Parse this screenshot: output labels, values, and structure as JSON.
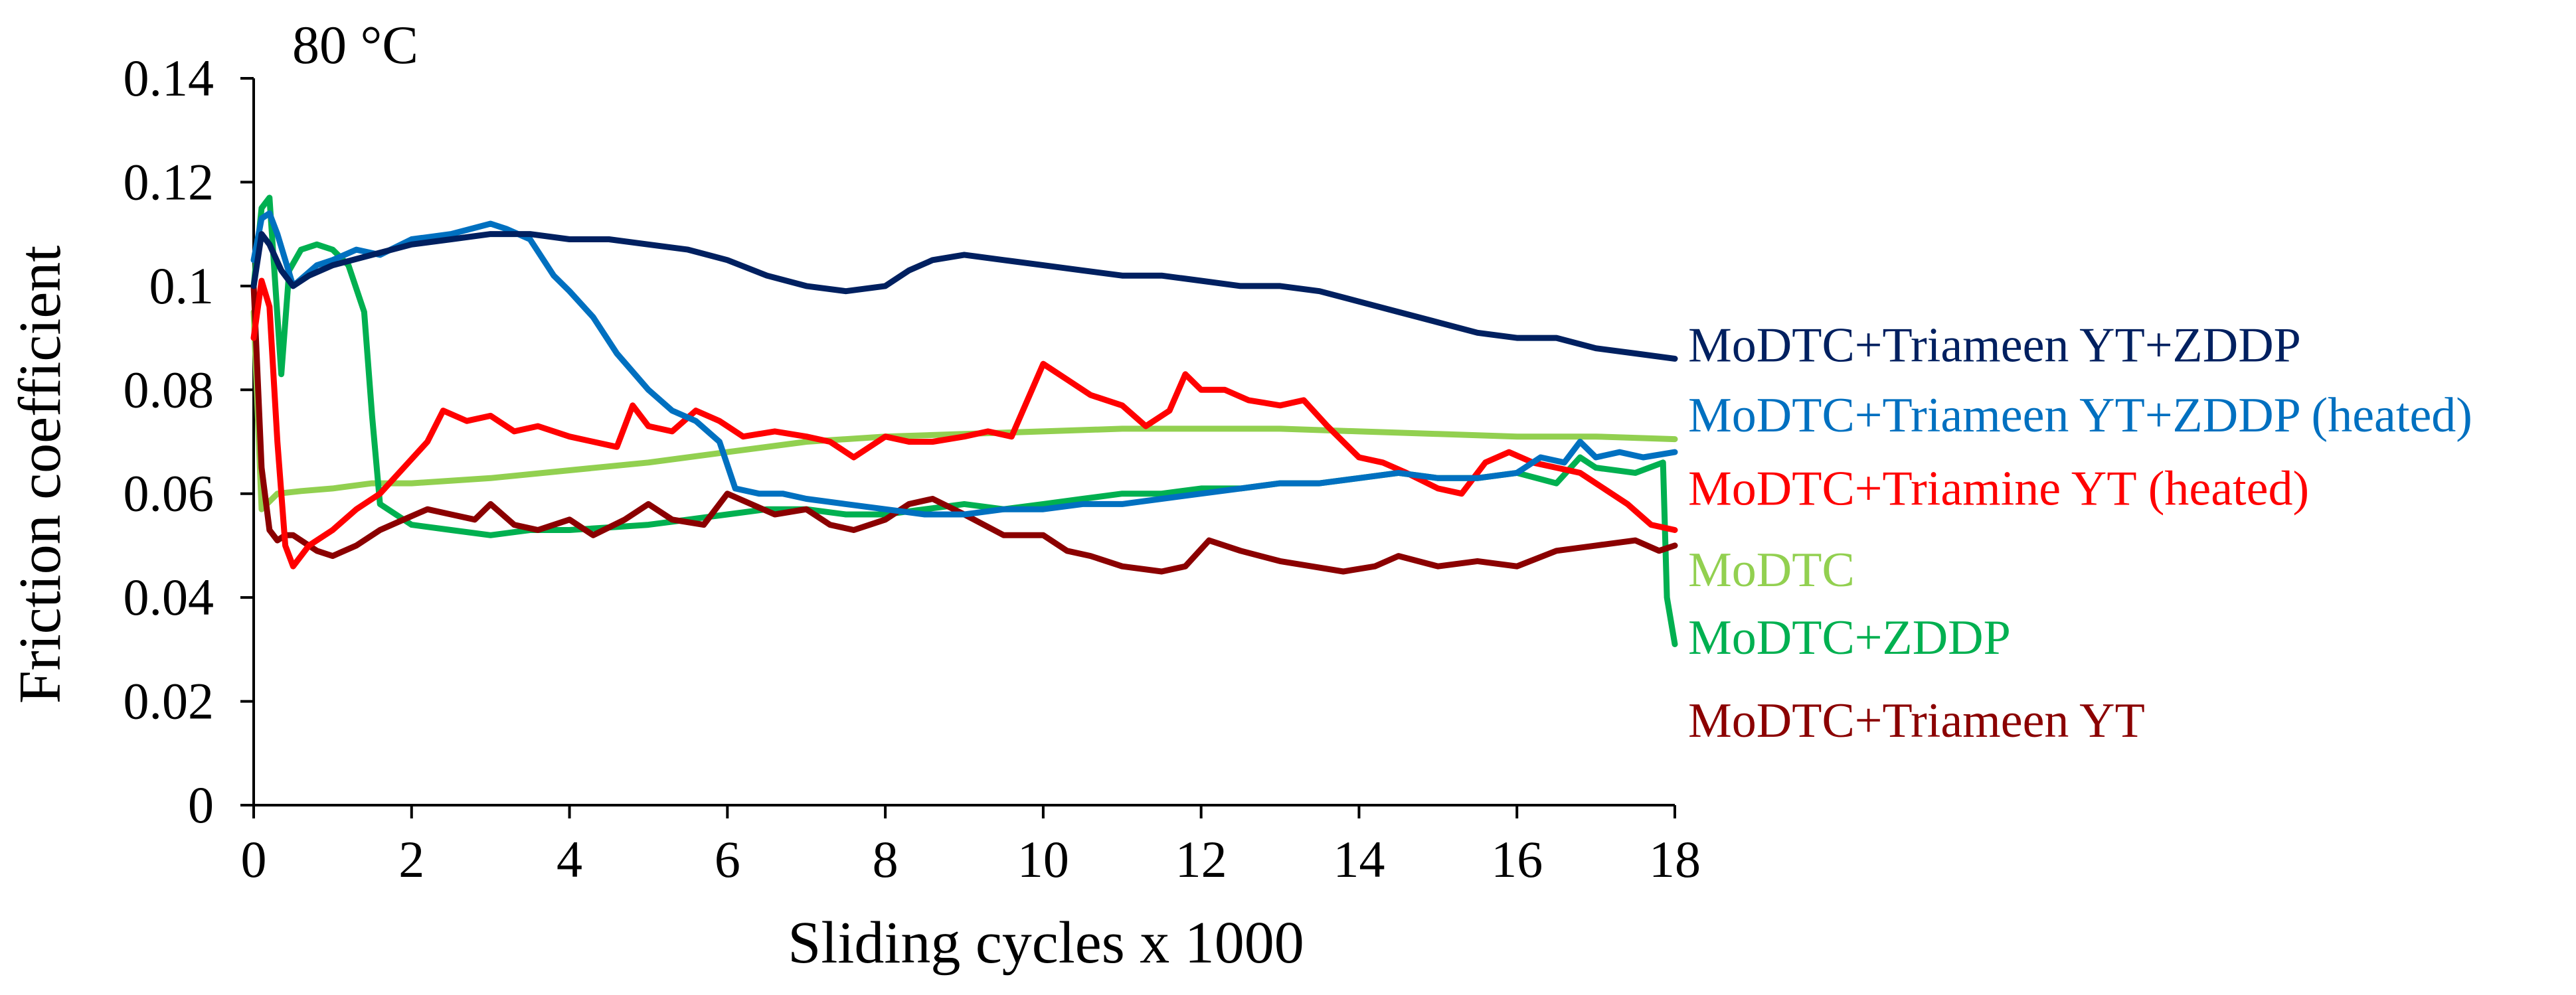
{
  "chart_data": {
    "type": "line",
    "annotation": "80 °C",
    "xlabel": "Sliding cycles x 1000",
    "ylabel": "Friction coefficient",
    "xlim": [
      0,
      18
    ],
    "ylim": [
      0,
      0.14
    ],
    "xticks": [
      0,
      2,
      4,
      6,
      8,
      10,
      12,
      14,
      16,
      18
    ],
    "xtick_labels": [
      "0",
      "2",
      "4",
      "6",
      "8",
      "10",
      "12",
      "14",
      "16",
      "18"
    ],
    "yticks": [
      0,
      0.02,
      0.04,
      0.06,
      0.08,
      0.1,
      0.12,
      0.14
    ],
    "ytick_labels": [
      "0",
      "0.02",
      "0.04",
      "0.06",
      "0.08",
      "0.1",
      "0.12",
      "0.14"
    ],
    "grid": false,
    "series": [
      {
        "name": "MoDTC",
        "color": "#92D050",
        "label_value": 0.0455,
        "x": [
          0,
          0.1,
          0.3,
          0.6,
          1,
          1.5,
          2,
          3,
          4,
          5,
          6,
          7,
          8,
          9,
          10,
          11,
          12,
          13,
          14,
          15,
          16,
          17,
          18
        ],
        "y": [
          0.095,
          0.057,
          0.06,
          0.0605,
          0.061,
          0.062,
          0.062,
          0.063,
          0.0645,
          0.066,
          0.068,
          0.07,
          0.071,
          0.0715,
          0.072,
          0.0725,
          0.0725,
          0.0725,
          0.072,
          0.0715,
          0.071,
          0.071,
          0.0705
        ]
      },
      {
        "name": "MoDTC+ZDDP",
        "color": "#00B050",
        "label_value": 0.0325,
        "x": [
          0,
          0.1,
          0.2,
          0.35,
          0.45,
          0.6,
          0.8,
          1.0,
          1.2,
          1.4,
          1.5,
          1.6,
          2,
          2.5,
          3,
          3.5,
          4,
          4.5,
          5,
          5.5,
          6,
          6.5,
          7,
          7.5,
          8,
          8.5,
          9,
          9.5,
          10,
          10.5,
          11,
          11.5,
          12,
          12.5,
          13,
          13.5,
          14,
          14.5,
          15,
          15.5,
          16,
          16.5,
          16.8,
          17,
          17.5,
          17.85,
          17.9,
          18
        ],
        "y": [
          0.1,
          0.115,
          0.117,
          0.083,
          0.103,
          0.107,
          0.108,
          0.107,
          0.104,
          0.095,
          0.075,
          0.058,
          0.054,
          0.053,
          0.052,
          0.053,
          0.053,
          0.0535,
          0.054,
          0.055,
          0.056,
          0.057,
          0.057,
          0.056,
          0.056,
          0.057,
          0.058,
          0.057,
          0.058,
          0.059,
          0.06,
          0.06,
          0.061,
          0.061,
          0.062,
          0.062,
          0.063,
          0.064,
          0.063,
          0.063,
          0.064,
          0.062,
          0.067,
          0.065,
          0.064,
          0.066,
          0.04,
          0.031
        ]
      },
      {
        "name": "MoDTC+Triameen YT",
        "color": "#8B0000",
        "label_value": 0.0165,
        "x": [
          0,
          0.1,
          0.2,
          0.3,
          0.4,
          0.5,
          0.8,
          1,
          1.3,
          1.6,
          1.9,
          2.2,
          2.5,
          2.8,
          3,
          3.3,
          3.6,
          4,
          4.3,
          4.7,
          5,
          5.3,
          5.7,
          6,
          6.3,
          6.6,
          7,
          7.3,
          7.6,
          8,
          8.3,
          8.6,
          9,
          9.5,
          10,
          10.3,
          10.6,
          11,
          11.5,
          11.8,
          12.1,
          12.5,
          13,
          13.4,
          13.8,
          14.2,
          14.5,
          15,
          15.5,
          16,
          16.5,
          17,
          17.5,
          17.8,
          18
        ],
        "y": [
          0.1,
          0.065,
          0.053,
          0.051,
          0.052,
          0.052,
          0.049,
          0.048,
          0.05,
          0.053,
          0.055,
          0.057,
          0.056,
          0.055,
          0.058,
          0.054,
          0.053,
          0.055,
          0.052,
          0.055,
          0.058,
          0.055,
          0.054,
          0.06,
          0.058,
          0.056,
          0.057,
          0.054,
          0.053,
          0.055,
          0.058,
          0.059,
          0.056,
          0.052,
          0.052,
          0.049,
          0.048,
          0.046,
          0.045,
          0.046,
          0.051,
          0.049,
          0.047,
          0.046,
          0.045,
          0.046,
          0.048,
          0.046,
          0.047,
          0.046,
          0.049,
          0.05,
          0.051,
          0.049,
          0.05
        ]
      },
      {
        "name": "MoDTC+Triamine YT (heated)",
        "color": "#FF0000",
        "label_value": 0.0612,
        "x": [
          0,
          0.1,
          0.2,
          0.3,
          0.4,
          0.5,
          0.7,
          1,
          1.3,
          1.6,
          1.9,
          2.2,
          2.4,
          2.7,
          3,
          3.3,
          3.6,
          4,
          4.3,
          4.6,
          4.8,
          5,
          5.3,
          5.6,
          5.9,
          6.2,
          6.6,
          7,
          7.3,
          7.6,
          8,
          8.3,
          8.6,
          9,
          9.3,
          9.6,
          9.8,
          10,
          10.3,
          10.6,
          11,
          11.3,
          11.6,
          11.8,
          12,
          12.3,
          12.6,
          13,
          13.3,
          13.6,
          14,
          14.3,
          14.6,
          15,
          15.3,
          15.6,
          15.9,
          16.2,
          16.5,
          16.8,
          17.1,
          17.4,
          17.7,
          18
        ],
        "y": [
          0.09,
          0.101,
          0.096,
          0.07,
          0.05,
          0.046,
          0.05,
          0.053,
          0.057,
          0.06,
          0.065,
          0.07,
          0.076,
          0.074,
          0.075,
          0.072,
          0.073,
          0.071,
          0.07,
          0.069,
          0.077,
          0.073,
          0.072,
          0.076,
          0.074,
          0.071,
          0.072,
          0.071,
          0.07,
          0.067,
          0.071,
          0.07,
          0.07,
          0.071,
          0.072,
          0.071,
          0.078,
          0.085,
          0.082,
          0.079,
          0.077,
          0.073,
          0.076,
          0.083,
          0.08,
          0.08,
          0.078,
          0.077,
          0.078,
          0.073,
          0.067,
          0.066,
          0.064,
          0.061,
          0.06,
          0.066,
          0.068,
          0.066,
          0.065,
          0.064,
          0.061,
          0.058,
          0.054,
          0.053
        ]
      },
      {
        "name": "MoDTC+Triameen YT+ZDDP (heated)",
        "color": "#0070C0",
        "label_value": 0.0753,
        "x": [
          0,
          0.1,
          0.2,
          0.3,
          0.5,
          0.8,
          1,
          1.3,
          1.6,
          2,
          2.5,
          3,
          3.2,
          3.5,
          3.8,
          4,
          4.3,
          4.6,
          5,
          5.3,
          5.6,
          5.9,
          6.1,
          6.4,
          6.7,
          7,
          7.5,
          8,
          8.5,
          9,
          9.5,
          10,
          10.5,
          11,
          11.5,
          12,
          12.5,
          13,
          13.5,
          14,
          14.5,
          15,
          15.5,
          16,
          16.3,
          16.6,
          16.8,
          17,
          17.3,
          17.6,
          18
        ],
        "y": [
          0.105,
          0.113,
          0.114,
          0.11,
          0.1,
          0.104,
          0.105,
          0.107,
          0.106,
          0.109,
          0.11,
          0.112,
          0.111,
          0.109,
          0.102,
          0.099,
          0.094,
          0.087,
          0.08,
          0.076,
          0.074,
          0.07,
          0.061,
          0.06,
          0.06,
          0.059,
          0.058,
          0.057,
          0.056,
          0.056,
          0.057,
          0.057,
          0.058,
          0.058,
          0.059,
          0.06,
          0.061,
          0.062,
          0.062,
          0.063,
          0.064,
          0.063,
          0.063,
          0.064,
          0.067,
          0.066,
          0.07,
          0.067,
          0.068,
          0.067,
          0.068
        ]
      },
      {
        "name": "MoDTC+Triameen YT+ZDDP",
        "color": "#002060",
        "label_value": 0.0888,
        "x": [
          0,
          0.1,
          0.2,
          0.35,
          0.5,
          0.7,
          1,
          1.5,
          2,
          2.5,
          3,
          3.5,
          4,
          4.5,
          5,
          5.5,
          6,
          6.5,
          7,
          7.5,
          8,
          8.3,
          8.6,
          9,
          9.5,
          10,
          10.5,
          11,
          11.5,
          12,
          12.5,
          13,
          13.5,
          14,
          14.5,
          15,
          15.5,
          16,
          16.5,
          17,
          17.5,
          18
        ],
        "y": [
          0.1,
          0.11,
          0.108,
          0.103,
          0.1,
          0.102,
          0.104,
          0.106,
          0.108,
          0.109,
          0.11,
          0.11,
          0.109,
          0.109,
          0.108,
          0.107,
          0.105,
          0.102,
          0.1,
          0.099,
          0.1,
          0.103,
          0.105,
          0.106,
          0.105,
          0.104,
          0.103,
          0.102,
          0.102,
          0.101,
          0.1,
          0.1,
          0.099,
          0.097,
          0.095,
          0.093,
          0.091,
          0.09,
          0.09,
          0.088,
          0.087,
          0.086
        ]
      }
    ]
  }
}
